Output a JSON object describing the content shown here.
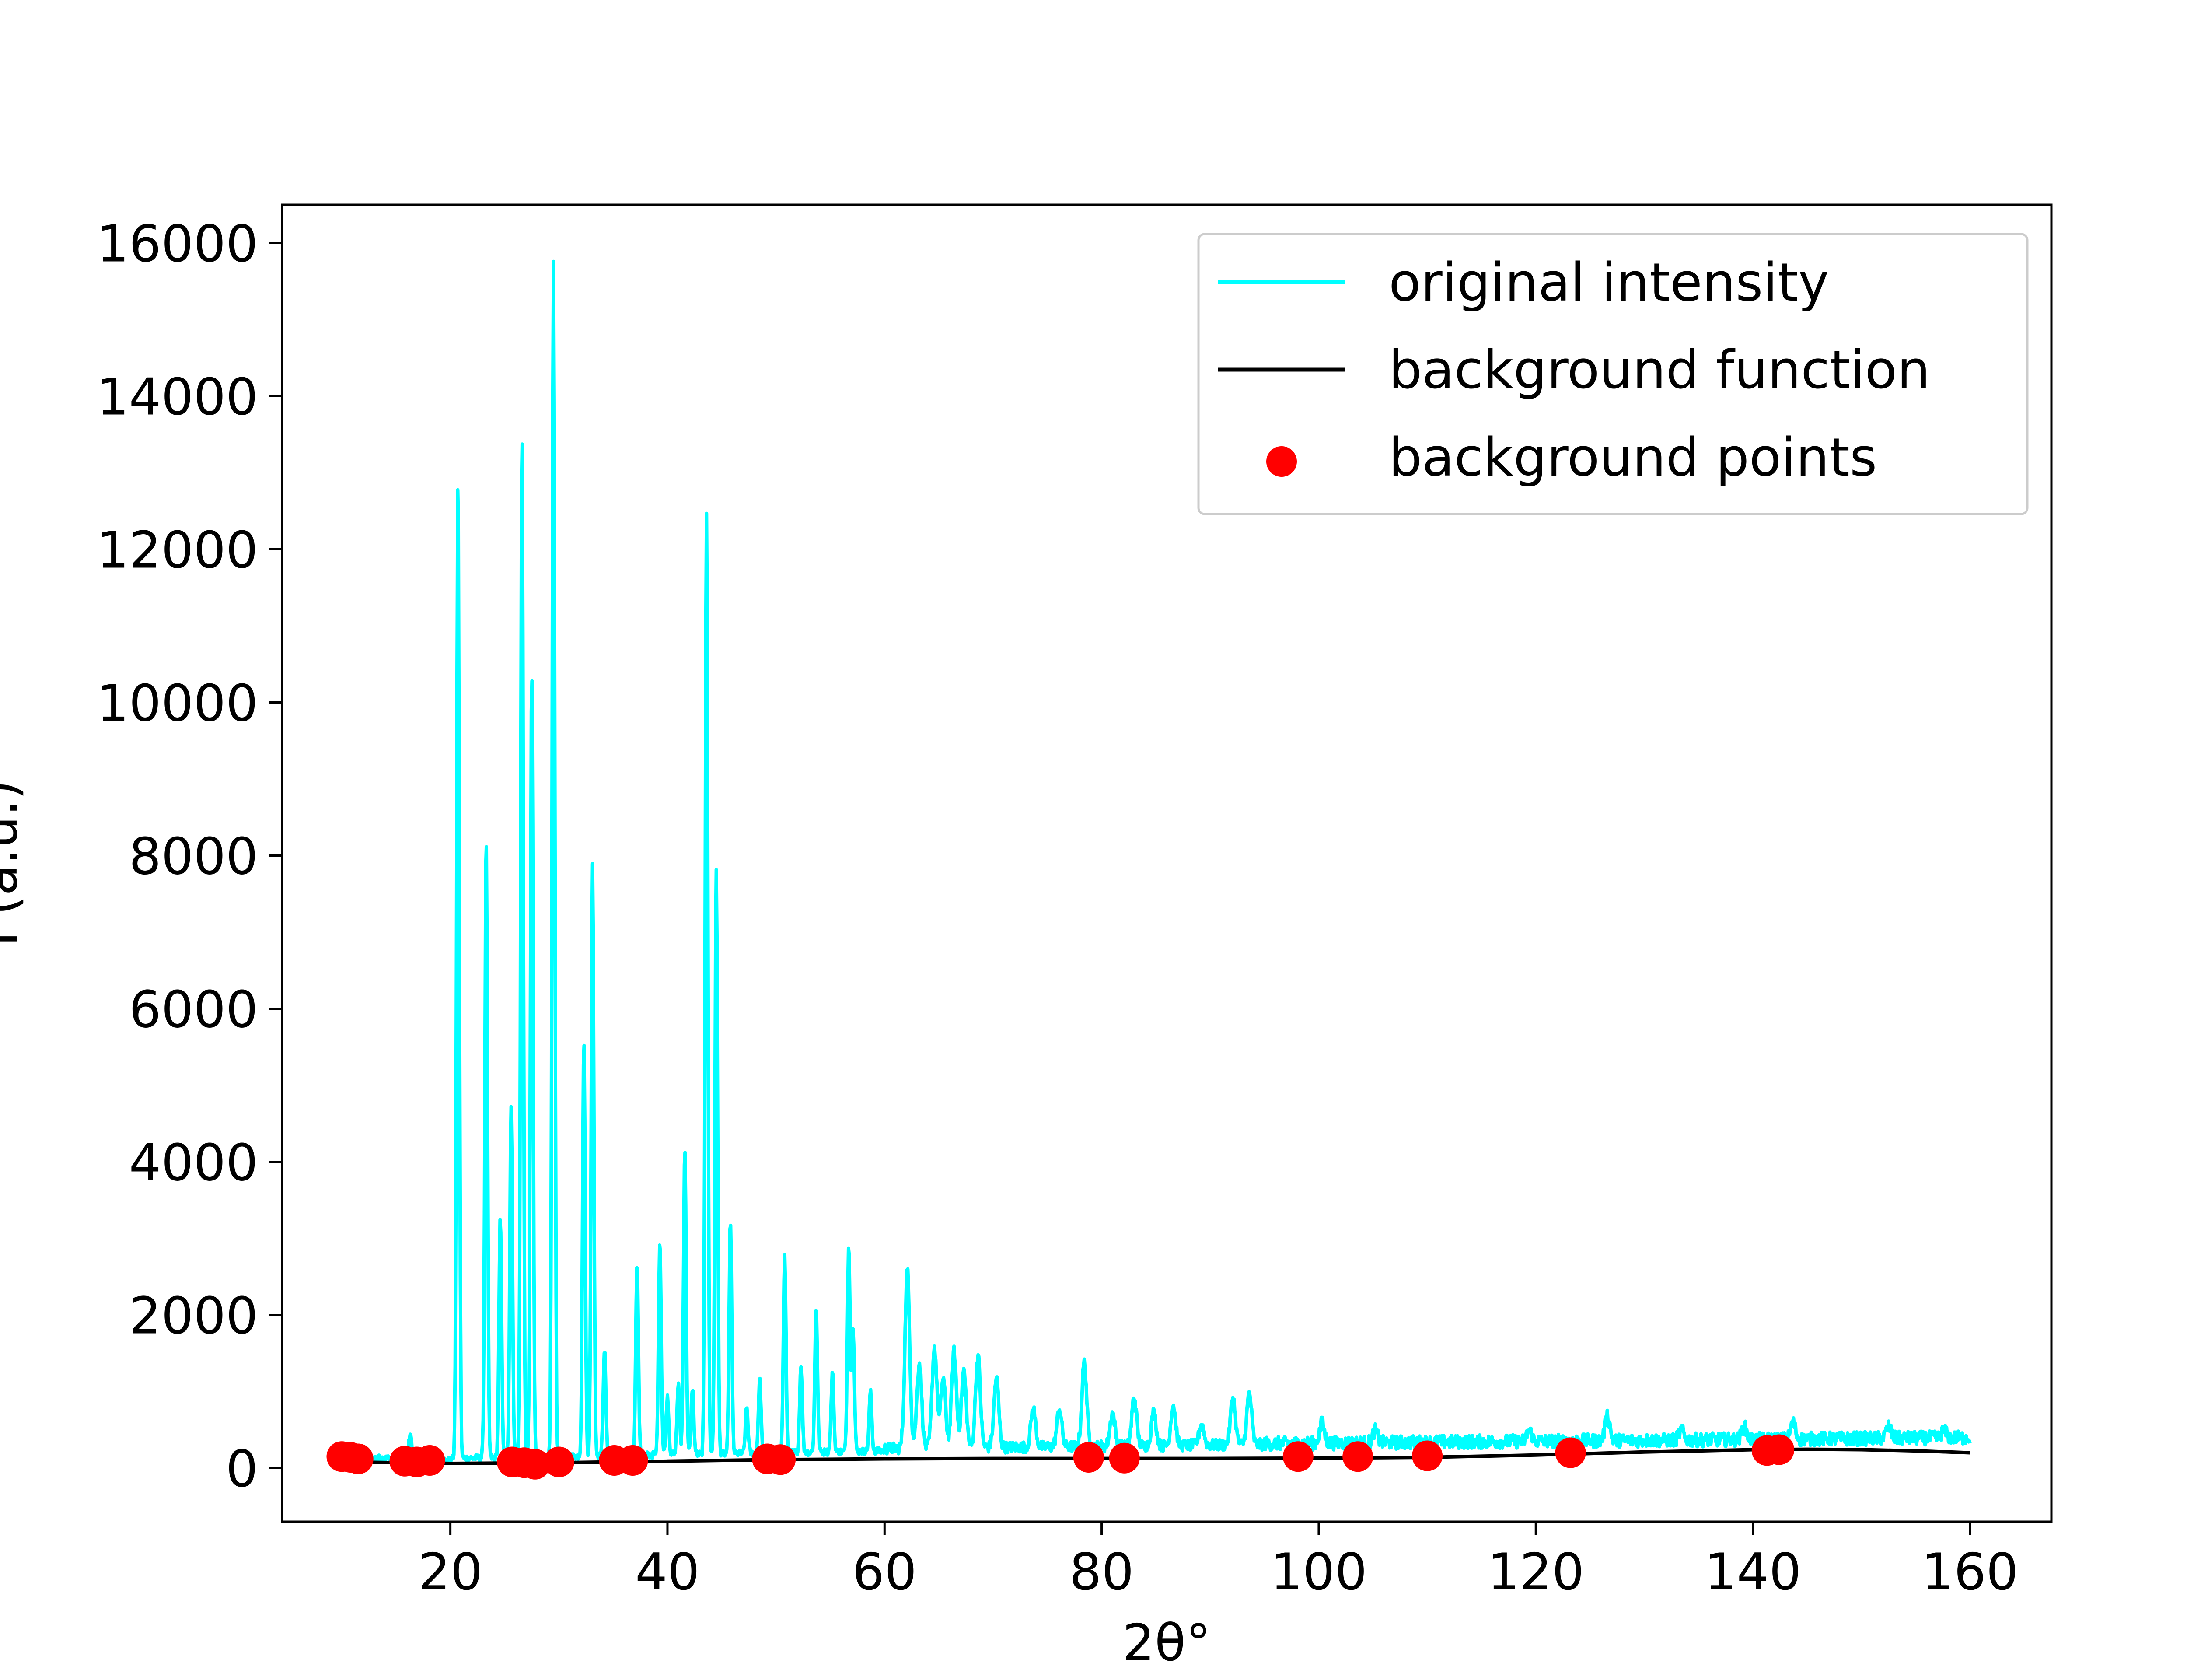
{
  "chart_data": {
    "type": "line",
    "title": "",
    "xlabel": "2θ°",
    "ylabel": "I (a.u.)",
    "xlim": [
      4.5,
      167.5
    ],
    "ylim": [
      -700,
      16500
    ],
    "xticks": [
      20,
      40,
      60,
      80,
      100,
      120,
      140,
      160
    ],
    "yticks": [
      0,
      2000,
      4000,
      6000,
      8000,
      10000,
      12000,
      14000,
      16000
    ],
    "grid": false,
    "legend_position": "top-right",
    "colors": {
      "original": "#00ffff",
      "background_function": "#000000",
      "background_points": "#ff0000"
    },
    "series": [
      {
        "name": "original intensity",
        "type": "line",
        "peaks": [
          [
            16.3,
            420
          ],
          [
            20.7,
            12900
          ],
          [
            23.3,
            8200
          ],
          [
            24.6,
            3200
          ],
          [
            25.6,
            4650
          ],
          [
            26.6,
            13500
          ],
          [
            27.5,
            10350
          ],
          [
            29.5,
            15700
          ],
          [
            32.3,
            5550
          ],
          [
            33.1,
            7850
          ],
          [
            34.2,
            1500
          ],
          [
            37.2,
            2650
          ],
          [
            39.3,
            2950
          ],
          [
            40.0,
            900
          ],
          [
            41.0,
            1050
          ],
          [
            41.6,
            4150
          ],
          [
            42.3,
            1000
          ],
          [
            43.6,
            12450
          ],
          [
            44.5,
            7750
          ],
          [
            45.8,
            3200
          ],
          [
            47.3,
            750
          ],
          [
            48.5,
            1100
          ],
          [
            50.8,
            2700
          ],
          [
            52.3,
            1300
          ],
          [
            53.7,
            2050
          ],
          [
            55.2,
            1200
          ],
          [
            56.7,
            2900
          ],
          [
            57.1,
            1800
          ],
          [
            58.7,
            950
          ],
          [
            62.1,
            2500
          ],
          [
            63.2,
            1300
          ],
          [
            64.6,
            1500
          ],
          [
            65.4,
            1100
          ],
          [
            66.4,
            1450
          ],
          [
            67.3,
            1200
          ],
          [
            68.6,
            1400
          ],
          [
            70.3,
            1100
          ],
          [
            73.7,
            700
          ],
          [
            76.1,
            700
          ],
          [
            78.4,
            1300
          ],
          [
            81.0,
            650
          ],
          [
            83.0,
            850
          ],
          [
            84.8,
            650
          ],
          [
            86.6,
            750
          ],
          [
            89.2,
            500
          ],
          [
            92.1,
            850
          ],
          [
            93.6,
            900
          ],
          [
            100.3,
            500
          ],
          [
            105.2,
            400
          ],
          [
            119.4,
            400
          ],
          [
            126.6,
            600
          ],
          [
            133.4,
            400
          ],
          [
            139.2,
            450
          ],
          [
            143.7,
            500
          ],
          [
            152.5,
            450
          ],
          [
            157.6,
            400
          ]
        ]
      },
      {
        "name": "background function",
        "type": "line",
        "x": [
          10,
          20,
          30,
          40,
          50,
          60,
          70,
          80,
          90,
          100,
          110,
          120,
          130,
          140,
          145,
          150,
          155,
          160
        ],
        "y": [
          80,
          60,
          70,
          90,
          110,
          120,
          125,
          125,
          125,
          130,
          140,
          170,
          210,
          240,
          245,
          240,
          225,
          200
        ]
      },
      {
        "name": "background points",
        "type": "scatter",
        "x": [
          10.0,
          10.8,
          11.5,
          15.8,
          16.9,
          18.1,
          25.7,
          26.8,
          27.8,
          30.0,
          35.1,
          36.8,
          49.2,
          50.4,
          78.8,
          82.1,
          98.1,
          103.6,
          110.0,
          123.2,
          141.3,
          142.4
        ],
        "y": [
          150,
          140,
          120,
          90,
          80,
          100,
          80,
          70,
          50,
          80,
          100,
          100,
          120,
          110,
          140,
          130,
          150,
          150,
          160,
          200,
          230,
          240
        ]
      }
    ]
  }
}
